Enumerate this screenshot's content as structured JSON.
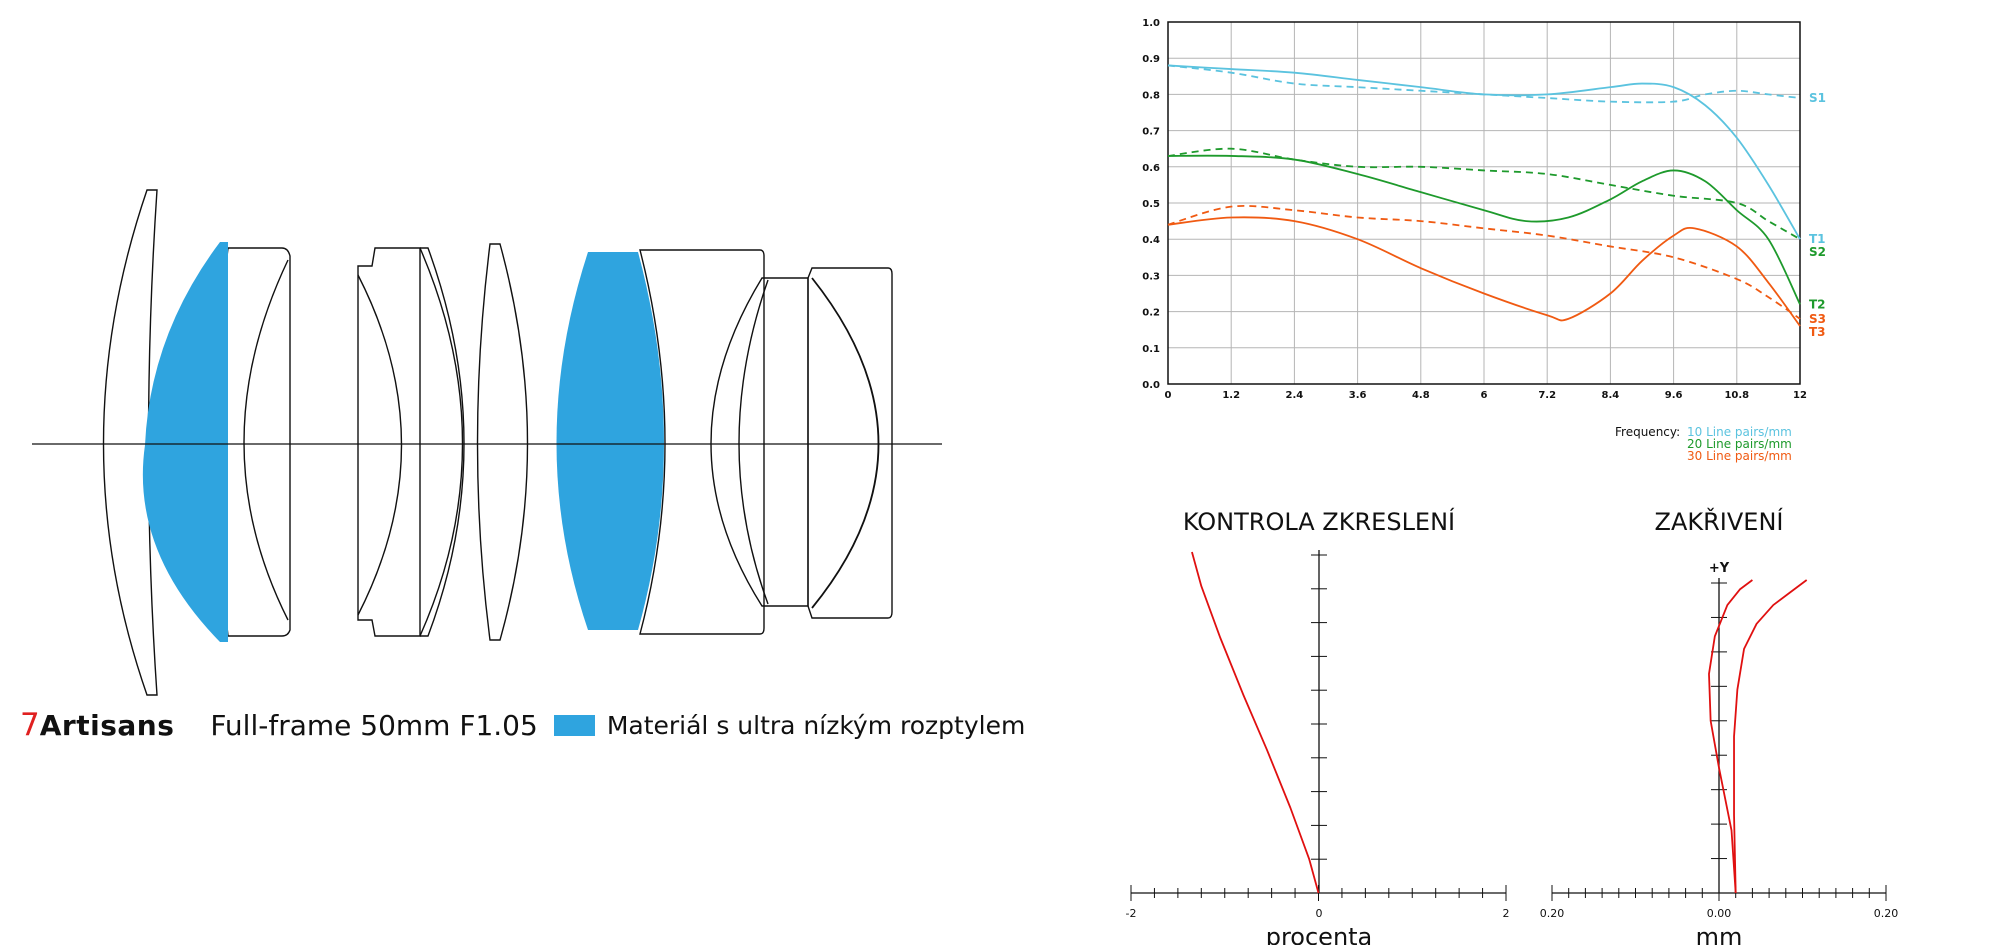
{
  "lens": {
    "brand_seven": "7",
    "brand_name": "Artisans",
    "model": "Full-frame 50mm F1.05",
    "legend_label": "Materiál s ultra nízkým rozptylem",
    "accent_color": "#2fa4df",
    "brand_color": "#e02020"
  },
  "chart_data": [
    {
      "type": "line",
      "title": "",
      "xlabel": "",
      "ylabel": "",
      "xlim": [
        0,
        12
      ],
      "ylim": [
        0,
        1
      ],
      "x_ticks": [
        "0",
        "1.2",
        "2.4",
        "3.6",
        "4.8",
        "6",
        "7.2",
        "8.4",
        "9.6",
        "10.8",
        "12"
      ],
      "y_ticks": [
        "0.0",
        "0.1",
        "0.2",
        "0.3",
        "0.4",
        "0.5",
        "0.6",
        "0.7",
        "0.8",
        "0.9",
        "1.0"
      ],
      "grid": true,
      "legend": {
        "title": "Frequency:",
        "entries": [
          {
            "label": "10 Line pairs/mm",
            "color": "#5bc3df"
          },
          {
            "label": "20 Line pairs/mm",
            "color": "#1e9a2c"
          },
          {
            "label": "30 Line pairs/mm",
            "color": "#f05a12"
          }
        ]
      },
      "series": [
        {
          "name": "T1",
          "color": "#5bc3df",
          "dash": false,
          "x": [
            0,
            1.2,
            2.4,
            3.6,
            4.8,
            6,
            7.2,
            8.4,
            9.0,
            9.6,
            10.2,
            10.8,
            11.4,
            12
          ],
          "y": [
            0.88,
            0.87,
            0.86,
            0.84,
            0.82,
            0.8,
            0.8,
            0.82,
            0.83,
            0.82,
            0.77,
            0.68,
            0.55,
            0.4
          ]
        },
        {
          "name": "S1",
          "color": "#5bc3df",
          "dash": true,
          "x": [
            0,
            1.2,
            2.4,
            3.6,
            4.8,
            6,
            7.2,
            8.4,
            9.6,
            10.2,
            10.8,
            11.4,
            12
          ],
          "y": [
            0.88,
            0.86,
            0.83,
            0.82,
            0.81,
            0.8,
            0.79,
            0.78,
            0.78,
            0.8,
            0.81,
            0.8,
            0.79
          ]
        },
        {
          "name": "T2",
          "color": "#1e9a2c",
          "dash": false,
          "x": [
            0,
            1.2,
            2.4,
            3.6,
            4.8,
            6,
            6.8,
            7.6,
            8.4,
            9.0,
            9.6,
            10.2,
            10.8,
            11.4,
            12
          ],
          "y": [
            0.63,
            0.63,
            0.62,
            0.58,
            0.53,
            0.48,
            0.45,
            0.46,
            0.51,
            0.56,
            0.59,
            0.56,
            0.48,
            0.4,
            0.22
          ]
        },
        {
          "name": "S2",
          "color": "#1e9a2c",
          "dash": true,
          "x": [
            0,
            1.2,
            2.4,
            3.6,
            4.8,
            6,
            7.2,
            8.4,
            9.6,
            10.8,
            11.4,
            12
          ],
          "y": [
            0.63,
            0.65,
            0.62,
            0.6,
            0.6,
            0.59,
            0.58,
            0.55,
            0.52,
            0.5,
            0.45,
            0.4
          ]
        },
        {
          "name": "T3",
          "color": "#f05a12",
          "dash": false,
          "x": [
            0,
            1.2,
            2.4,
            3.6,
            4.8,
            6,
            7.2,
            7.6,
            8.4,
            9.0,
            9.6,
            10.0,
            10.8,
            11.4,
            12
          ],
          "y": [
            0.44,
            0.46,
            0.45,
            0.4,
            0.32,
            0.25,
            0.19,
            0.18,
            0.25,
            0.34,
            0.41,
            0.43,
            0.38,
            0.28,
            0.16
          ]
        },
        {
          "name": "S3",
          "color": "#f05a12",
          "dash": true,
          "x": [
            0,
            1.2,
            2.4,
            3.6,
            4.8,
            6,
            7.2,
            8.4,
            9.6,
            10.8,
            11.4,
            12
          ],
          "y": [
            0.44,
            0.49,
            0.48,
            0.46,
            0.45,
            0.43,
            0.41,
            0.38,
            0.35,
            0.29,
            0.24,
            0.18
          ]
        }
      ]
    },
    {
      "type": "line",
      "title": "KONTROLA ZKRESLENÍ",
      "xlabel": "procenta",
      "ylabel": "",
      "xlim": [
        -2,
        2
      ],
      "x_ticks": [
        "-2",
        "0",
        "2"
      ],
      "series": [
        {
          "color": "#e01010",
          "x": [
            0,
            -0.1,
            -0.3,
            -0.55,
            -0.8,
            -1.05,
            -1.25,
            -1.35
          ],
          "y": [
            0,
            0.1,
            0.25,
            0.42,
            0.58,
            0.75,
            0.9,
            1.0
          ]
        }
      ]
    },
    {
      "type": "line",
      "title": "ZAKŘIVENÍ",
      "xlabel": "mm",
      "ylabel": "+Y",
      "xlim": [
        -0.2,
        0.2
      ],
      "x_ticks": [
        "0.20",
        "0.00",
        "0.20"
      ],
      "series": [
        {
          "color": "#e01010",
          "x": [
            0.02,
            0.015,
            0.0,
            -0.01,
            -0.012,
            -0.005,
            0.01,
            0.025,
            0.04
          ],
          "y": [
            0,
            0.2,
            0.4,
            0.55,
            0.7,
            0.82,
            0.92,
            0.97,
            1.0
          ]
        },
        {
          "color": "#e01010",
          "x": [
            0.02,
            0.018,
            0.018,
            0.022,
            0.03,
            0.045,
            0.065,
            0.085,
            0.105
          ],
          "y": [
            0,
            0.25,
            0.5,
            0.65,
            0.78,
            0.86,
            0.92,
            0.96,
            1.0
          ]
        }
      ]
    }
  ]
}
